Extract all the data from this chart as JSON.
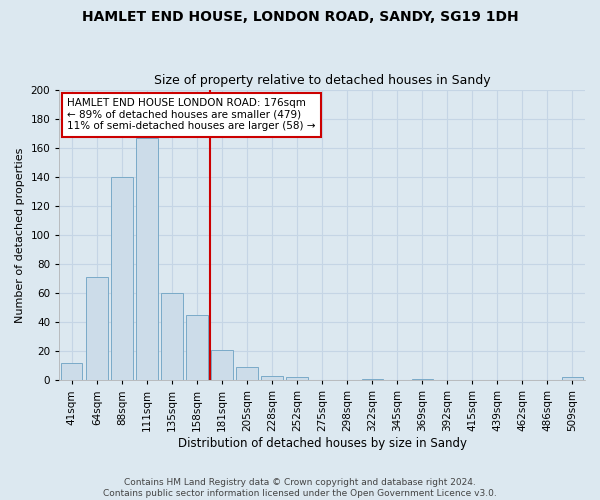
{
  "title1": "HAMLET END HOUSE, LONDON ROAD, SANDY, SG19 1DH",
  "title2": "Size of property relative to detached houses in Sandy",
  "xlabel": "Distribution of detached houses by size in Sandy",
  "ylabel": "Number of detached properties",
  "categories": [
    "41sqm",
    "64sqm",
    "88sqm",
    "111sqm",
    "135sqm",
    "158sqm",
    "181sqm",
    "205sqm",
    "228sqm",
    "252sqm",
    "275sqm",
    "298sqm",
    "322sqm",
    "345sqm",
    "369sqm",
    "392sqm",
    "415sqm",
    "439sqm",
    "462sqm",
    "486sqm",
    "509sqm"
  ],
  "values": [
    12,
    71,
    140,
    167,
    60,
    45,
    21,
    9,
    3,
    2,
    0,
    0,
    1,
    0,
    1,
    0,
    0,
    0,
    0,
    0,
    2
  ],
  "bar_color": "#ccdce9",
  "bar_edge_color": "#7aaac8",
  "vline_x_index": 6,
  "vline_color": "#cc0000",
  "annotation_text": "HAMLET END HOUSE LONDON ROAD: 176sqm\n← 89% of detached houses are smaller (479)\n11% of semi-detached houses are larger (58) →",
  "annotation_box_color": "white",
  "annotation_box_edge_color": "#cc0000",
  "ylim": [
    0,
    200
  ],
  "yticks": [
    0,
    20,
    40,
    60,
    80,
    100,
    120,
    140,
    160,
    180,
    200
  ],
  "grid_color": "#c5d5e5",
  "background_color": "#dce8f0",
  "plot_bg_color": "#dce8f0",
  "footer_text": "Contains HM Land Registry data © Crown copyright and database right 2024.\nContains public sector information licensed under the Open Government Licence v3.0.",
  "title1_fontsize": 10,
  "title2_fontsize": 9,
  "xlabel_fontsize": 8.5,
  "ylabel_fontsize": 8,
  "tick_fontsize": 7.5,
  "annotation_fontsize": 7.5,
  "footer_fontsize": 6.5
}
